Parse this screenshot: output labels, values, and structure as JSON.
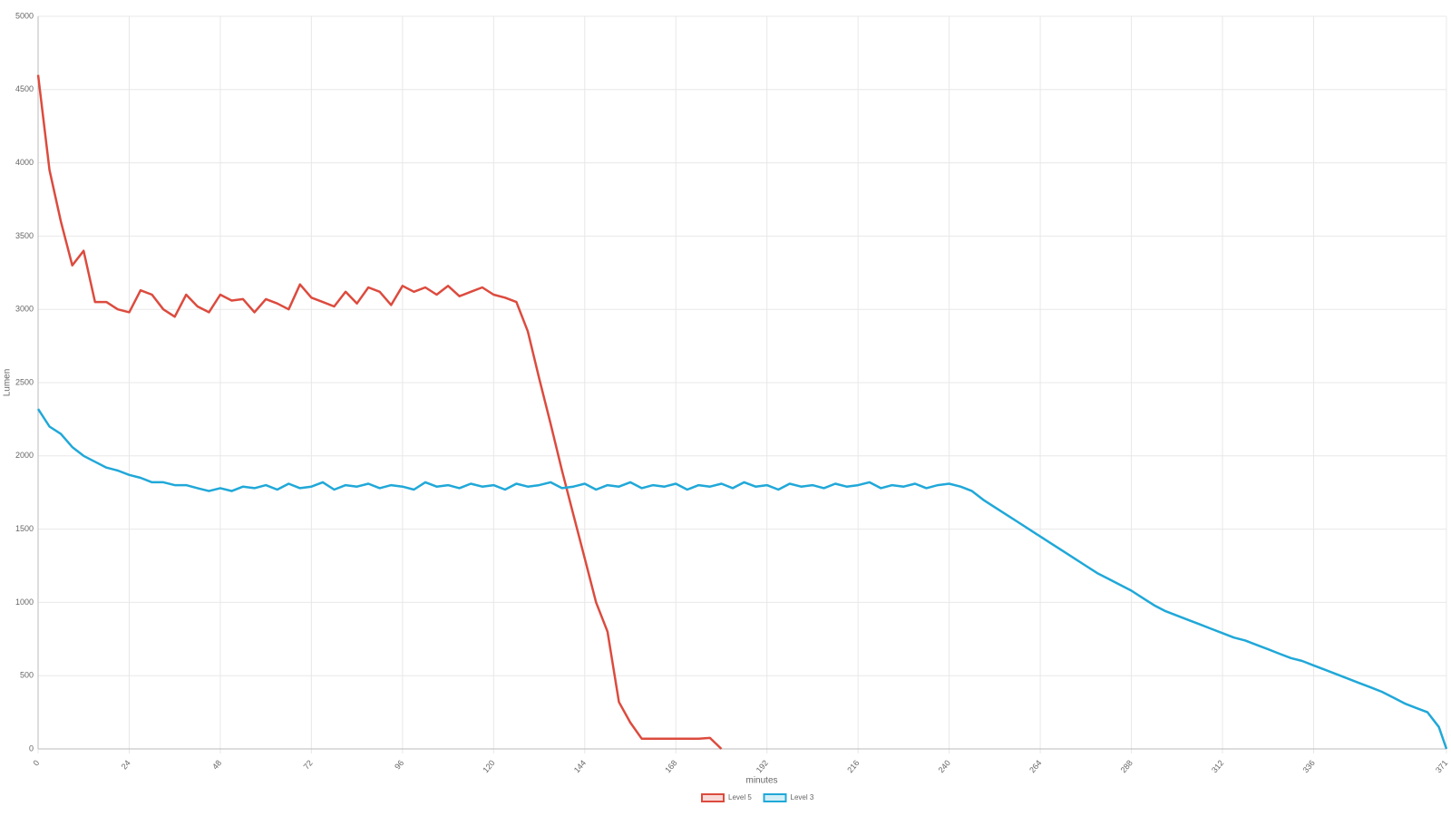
{
  "chart_data": {
    "type": "line",
    "x_label": "minutes",
    "y_label": "Lumen",
    "x": [
      0,
      3,
      6,
      9,
      12,
      15,
      18,
      21,
      24,
      27,
      30,
      33,
      36,
      39,
      42,
      45,
      48,
      51,
      54,
      57,
      60,
      63,
      66,
      69,
      72,
      75,
      78,
      81,
      84,
      87,
      90,
      93,
      96,
      99,
      102,
      105,
      108,
      111,
      114,
      117,
      120,
      123,
      126,
      129,
      132,
      135,
      138,
      141,
      144,
      147,
      150,
      153,
      156,
      159,
      162,
      165,
      168,
      171,
      174,
      177,
      180,
      183,
      186,
      189,
      192,
      195,
      198,
      201,
      204,
      207,
      210,
      213,
      216,
      219,
      222,
      225,
      228,
      231,
      234,
      237,
      240,
      243,
      246,
      249,
      252,
      255,
      258,
      261,
      264,
      267,
      270,
      273,
      276,
      279,
      282,
      285,
      288,
      291,
      294,
      297,
      300,
      303,
      306,
      309,
      312,
      315,
      318,
      321,
      324,
      327,
      330,
      333,
      336,
      339,
      342,
      345,
      348,
      351,
      354,
      357,
      360,
      363,
      366,
      369,
      371
    ],
    "series": [
      {
        "name": "Level 5",
        "color": "#dc4b3e",
        "values": [
          4600,
          3950,
          3600,
          3300,
          3400,
          3050,
          3050,
          3000,
          2980,
          3130,
          3100,
          3000,
          2950,
          3100,
          3020,
          2980,
          3100,
          3060,
          3070,
          2980,
          3070,
          3040,
          3000,
          3170,
          3080,
          3050,
          3020,
          3120,
          3040,
          3150,
          3120,
          3030,
          3160,
          3120,
          3150,
          3100,
          3160,
          3090,
          3120,
          3150,
          3100,
          3080,
          3050,
          2850,
          2530,
          2220,
          1900,
          1600,
          1300,
          1000,
          800,
          320,
          180,
          70,
          70,
          70,
          70,
          70,
          70,
          75,
          0,
          null,
          null,
          null,
          null,
          null,
          null,
          null,
          null,
          null,
          null,
          null,
          null,
          null,
          null,
          null,
          null,
          null,
          null,
          null,
          null,
          null,
          null,
          null,
          null,
          null,
          null,
          null,
          null,
          null,
          null,
          null,
          null,
          null,
          null,
          null,
          null,
          null,
          null,
          null,
          null,
          null,
          null,
          null,
          null,
          null,
          null,
          null,
          null,
          null,
          null,
          null,
          null,
          null,
          null,
          null,
          null,
          null,
          null,
          null,
          null,
          null,
          null,
          null,
          null
        ]
      },
      {
        "name": "Level 3",
        "color": "#20a8d8",
        "values": [
          2320,
          2200,
          2150,
          2060,
          2000,
          1960,
          1920,
          1900,
          1870,
          1850,
          1820,
          1820,
          1800,
          1800,
          1780,
          1760,
          1780,
          1760,
          1790,
          1780,
          1800,
          1770,
          1810,
          1780,
          1790,
          1820,
          1770,
          1800,
          1790,
          1810,
          1780,
          1800,
          1790,
          1770,
          1820,
          1790,
          1800,
          1780,
          1810,
          1790,
          1800,
          1770,
          1810,
          1790,
          1800,
          1820,
          1780,
          1790,
          1810,
          1770,
          1800,
          1790,
          1820,
          1780,
          1800,
          1790,
          1810,
          1770,
          1800,
          1790,
          1810,
          1780,
          1820,
          1790,
          1800,
          1770,
          1810,
          1790,
          1800,
          1780,
          1810,
          1790,
          1800,
          1820,
          1780,
          1800,
          1790,
          1810,
          1780,
          1800,
          1810,
          1790,
          1760,
          1700,
          1650,
          1600,
          1550,
          1500,
          1450,
          1400,
          1350,
          1300,
          1250,
          1200,
          1160,
          1120,
          1080,
          1030,
          980,
          940,
          910,
          880,
          850,
          820,
          790,
          760,
          740,
          710,
          680,
          650,
          620,
          600,
          570,
          540,
          510,
          480,
          450,
          420,
          390,
          350,
          310,
          280,
          250,
          150,
          0
        ]
      }
    ],
    "xlim": [
      0,
      371
    ],
    "xticks": [
      0,
      24,
      48,
      72,
      96,
      120,
      144,
      168,
      192,
      216,
      240,
      264,
      288,
      312,
      336,
      371
    ],
    "ylim": [
      0,
      5000
    ],
    "yticks": [
      0,
      500,
      1000,
      1500,
      2000,
      2500,
      3000,
      3500,
      4000,
      4500,
      5000
    ],
    "grid": true,
    "legend": "bottom"
  }
}
